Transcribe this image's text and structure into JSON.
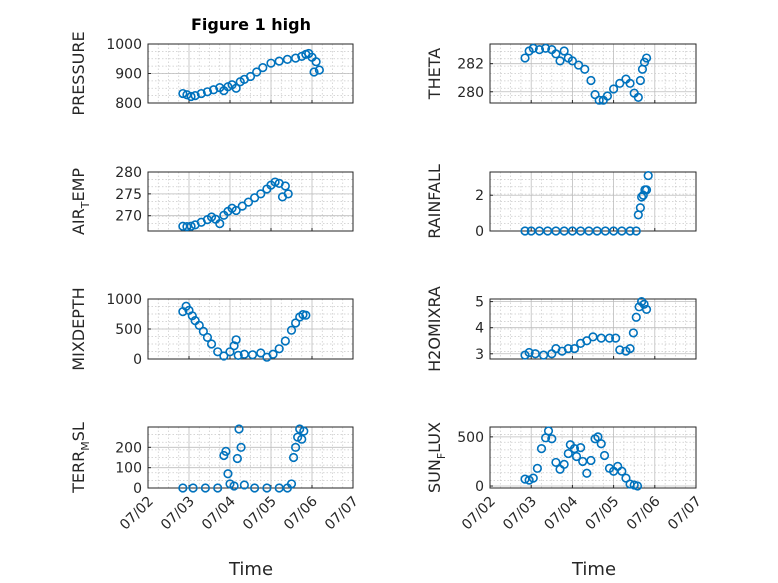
{
  "figure": {
    "title": "Figure 1 high",
    "marker_color": "#0072BD"
  },
  "chart_data": [
    {
      "type": "scatter",
      "id": "pressure",
      "ylabel": "PRESSURE",
      "ylim": [
        800,
        1000
      ],
      "yticks": [
        "800",
        "900",
        "1000"
      ],
      "x": [
        "07/02",
        "07/03",
        "07/04",
        "07/05",
        "07/06",
        "07/07"
      ],
      "series": [
        {
          "points": [
            [
              0.85,
              832
            ],
            [
              0.95,
              828
            ],
            [
              1.05,
              822
            ],
            [
              1.15,
              825
            ],
            [
              1.3,
              832
            ],
            [
              1.45,
              838
            ],
            [
              1.6,
              845
            ],
            [
              1.75,
              852
            ],
            [
              1.85,
              842
            ],
            [
              1.95,
              855
            ],
            [
              2.05,
              862
            ],
            [
              2.15,
              850
            ],
            [
              2.25,
              872
            ],
            [
              2.35,
              880
            ],
            [
              2.5,
              890
            ],
            [
              2.65,
              905
            ],
            [
              2.8,
              920
            ],
            [
              3.0,
              935
            ],
            [
              3.2,
              942
            ],
            [
              3.4,
              948
            ],
            [
              3.6,
              952
            ],
            [
              3.75,
              958
            ],
            [
              3.85,
              965
            ],
            [
              3.92,
              968
            ],
            [
              4.0,
              955
            ],
            [
              4.05,
              905
            ],
            [
              4.1,
              940
            ],
            [
              4.18,
              912
            ]
          ]
        }
      ]
    },
    {
      "type": "scatter",
      "id": "theta",
      "ylabel": "THETA",
      "ylim": [
        279.2,
        283.4
      ],
      "yticks": [
        "280",
        "282"
      ],
      "x": [
        "07/02",
        "07/03",
        "07/04",
        "07/05",
        "07/06",
        "07/07"
      ],
      "series": [
        {
          "points": [
            [
              0.85,
              282.4
            ],
            [
              0.95,
              282.9
            ],
            [
              1.05,
              283.1
            ],
            [
              1.2,
              283.0
            ],
            [
              1.35,
              283.1
            ],
            [
              1.5,
              283.0
            ],
            [
              1.6,
              282.7
            ],
            [
              1.7,
              282.2
            ],
            [
              1.8,
              282.9
            ],
            [
              1.9,
              282.4
            ],
            [
              2.0,
              282.2
            ],
            [
              2.15,
              281.9
            ],
            [
              2.3,
              281.6
            ],
            [
              2.45,
              280.8
            ],
            [
              2.55,
              279.8
            ],
            [
              2.65,
              279.4
            ],
            [
              2.75,
              279.4
            ],
            [
              2.85,
              279.7
            ],
            [
              3.0,
              280.2
            ],
            [
              3.15,
              280.6
            ],
            [
              3.3,
              280.9
            ],
            [
              3.4,
              280.6
            ],
            [
              3.5,
              279.9
            ],
            [
              3.6,
              279.6
            ],
            [
              3.65,
              280.8
            ],
            [
              3.7,
              281.6
            ],
            [
              3.75,
              282.1
            ],
            [
              3.8,
              282.4
            ]
          ]
        }
      ]
    },
    {
      "type": "scatter",
      "id": "air_temp",
      "ylabel": "AIR",
      "ylabel_sub": "T",
      "ylabel_tail": "EMP",
      "ylim": [
        266.5,
        280
      ],
      "yticks": [
        "270",
        "275",
        "280"
      ],
      "x": [
        "07/02",
        "07/03",
        "07/04",
        "07/05",
        "07/06",
        "07/07"
      ],
      "series": [
        {
          "points": [
            [
              0.85,
              267.6
            ],
            [
              0.95,
              267.5
            ],
            [
              1.05,
              267.6
            ],
            [
              1.15,
              267.9
            ],
            [
              1.3,
              268.5
            ],
            [
              1.45,
              269.1
            ],
            [
              1.55,
              269.7
            ],
            [
              1.65,
              269.2
            ],
            [
              1.75,
              268.2
            ],
            [
              1.85,
              270.1
            ],
            [
              1.95,
              271.0
            ],
            [
              2.05,
              271.7
            ],
            [
              2.15,
              271.2
            ],
            [
              2.3,
              272.2
            ],
            [
              2.45,
              273.1
            ],
            [
              2.6,
              274.1
            ],
            [
              2.75,
              275.0
            ],
            [
              2.9,
              276.1
            ],
            [
              3.0,
              277.0
            ],
            [
              3.1,
              277.7
            ],
            [
              3.2,
              277.4
            ],
            [
              3.28,
              274.3
            ],
            [
              3.35,
              276.8
            ],
            [
              3.42,
              275.0
            ]
          ]
        }
      ]
    },
    {
      "type": "scatter",
      "id": "rainfall",
      "ylabel": "RAINFALL",
      "ylim": [
        0,
        3.3
      ],
      "yticks": [
        "0",
        "2"
      ],
      "x": [
        "07/02",
        "07/03",
        "07/04",
        "07/05",
        "07/06",
        "07/07"
      ],
      "series": [
        {
          "points": [
            [
              0.85,
              0
            ],
            [
              1.0,
              0
            ],
            [
              1.2,
              0
            ],
            [
              1.4,
              0
            ],
            [
              1.6,
              0
            ],
            [
              1.8,
              0
            ],
            [
              2.0,
              0
            ],
            [
              2.2,
              0
            ],
            [
              2.4,
              0
            ],
            [
              2.6,
              0
            ],
            [
              2.8,
              0
            ],
            [
              3.0,
              0
            ],
            [
              3.2,
              0
            ],
            [
              3.4,
              0
            ],
            [
              3.55,
              0
            ],
            [
              3.6,
              0.9
            ],
            [
              3.65,
              1.3
            ],
            [
              3.68,
              1.9
            ],
            [
              3.72,
              2.0
            ],
            [
              3.76,
              2.3
            ],
            [
              3.8,
              2.3
            ],
            [
              3.84,
              3.1
            ]
          ]
        }
      ]
    },
    {
      "type": "scatter",
      "id": "mixdepth",
      "ylabel": "MIXDEPTH",
      "ylim": [
        0,
        1000
      ],
      "yticks": [
        "0",
        "500",
        "1000"
      ],
      "x": [
        "07/02",
        "07/03",
        "07/04",
        "07/05",
        "07/06",
        "07/07"
      ],
      "series": [
        {
          "points": [
            [
              0.85,
              790
            ],
            [
              0.93,
              880
            ],
            [
              1.0,
              810
            ],
            [
              1.08,
              720
            ],
            [
              1.15,
              640
            ],
            [
              1.25,
              560
            ],
            [
              1.35,
              460
            ],
            [
              1.45,
              360
            ],
            [
              1.55,
              250
            ],
            [
              1.7,
              120
            ],
            [
              1.85,
              50
            ],
            [
              2.0,
              120
            ],
            [
              2.1,
              220
            ],
            [
              2.15,
              320
            ],
            [
              2.2,
              60
            ],
            [
              2.35,
              80
            ],
            [
              2.55,
              70
            ],
            [
              2.75,
              100
            ],
            [
              2.9,
              30
            ],
            [
              3.05,
              80
            ],
            [
              3.2,
              170
            ],
            [
              3.35,
              300
            ],
            [
              3.5,
              480
            ],
            [
              3.6,
              600
            ],
            [
              3.7,
              700
            ],
            [
              3.78,
              740
            ],
            [
              3.85,
              730
            ]
          ]
        }
      ]
    },
    {
      "type": "scatter",
      "id": "h2omixra",
      "ylabel": "H2OMIXRA",
      "ylim": [
        2.8,
        5.1
      ],
      "yticks": [
        "3",
        "4",
        "5"
      ],
      "x": [
        "07/02",
        "07/03",
        "07/04",
        "07/05",
        "07/06",
        "07/07"
      ],
      "series": [
        {
          "points": [
            [
              0.85,
              2.95
            ],
            [
              0.95,
              3.05
            ],
            [
              1.1,
              3.0
            ],
            [
              1.3,
              2.95
            ],
            [
              1.5,
              3.0
            ],
            [
              1.6,
              3.2
            ],
            [
              1.75,
              3.1
            ],
            [
              1.9,
              3.2
            ],
            [
              2.05,
              3.2
            ],
            [
              2.2,
              3.4
            ],
            [
              2.35,
              3.5
            ],
            [
              2.5,
              3.65
            ],
            [
              2.7,
              3.6
            ],
            [
              2.9,
              3.6
            ],
            [
              3.05,
              3.6
            ],
            [
              3.15,
              3.15
            ],
            [
              3.3,
              3.1
            ],
            [
              3.4,
              3.2
            ],
            [
              3.48,
              3.8
            ],
            [
              3.55,
              4.4
            ],
            [
              3.62,
              4.8
            ],
            [
              3.68,
              5.0
            ],
            [
              3.74,
              4.9
            ],
            [
              3.8,
              4.7
            ]
          ]
        }
      ]
    },
    {
      "type": "scatter",
      "id": "terr_msl",
      "ylabel": "TERR",
      "ylabel_sub": "M",
      "ylabel_tail": "SL",
      "ylim": [
        0,
        300
      ],
      "yticks": [
        "0",
        "100",
        "200"
      ],
      "x": [
        "07/02",
        "07/03",
        "07/04",
        "07/05",
        "07/06",
        "07/07"
      ],
      "series": [
        {
          "points": [
            [
              0.85,
              0
            ],
            [
              1.1,
              0
            ],
            [
              1.4,
              0
            ],
            [
              1.7,
              0
            ],
            [
              1.85,
              160
            ],
            [
              1.9,
              180
            ],
            [
              1.95,
              70
            ],
            [
              2.0,
              20
            ],
            [
              2.1,
              10
            ],
            [
              2.18,
              145
            ],
            [
              2.22,
              290
            ],
            [
              2.27,
              200
            ],
            [
              2.35,
              15
            ],
            [
              2.6,
              0
            ],
            [
              2.9,
              0
            ],
            [
              3.2,
              0
            ],
            [
              3.4,
              0
            ],
            [
              3.5,
              20
            ],
            [
              3.55,
              150
            ],
            [
              3.6,
              200
            ],
            [
              3.65,
              250
            ],
            [
              3.7,
              290
            ],
            [
              3.75,
              240
            ],
            [
              3.8,
              280
            ]
          ]
        }
      ]
    },
    {
      "type": "scatter",
      "id": "sun_flux",
      "ylabel": "SUN",
      "ylabel_sub": "F",
      "ylabel_tail": "LUX",
      "ylim": [
        -20,
        600
      ],
      "yticks": [
        "0",
        "500"
      ],
      "x": [
        "07/02",
        "07/03",
        "07/04",
        "07/05",
        "07/06",
        "07/07"
      ],
      "series": [
        {
          "points": [
            [
              0.85,
              70
            ],
            [
              0.95,
              60
            ],
            [
              1.05,
              80
            ],
            [
              1.15,
              180
            ],
            [
              1.25,
              380
            ],
            [
              1.35,
              490
            ],
            [
              1.42,
              560
            ],
            [
              1.5,
              480
            ],
            [
              1.6,
              240
            ],
            [
              1.7,
              170
            ],
            [
              1.8,
              220
            ],
            [
              1.9,
              330
            ],
            [
              1.95,
              420
            ],
            [
              2.05,
              380
            ],
            [
              2.1,
              300
            ],
            [
              2.2,
              390
            ],
            [
              2.25,
              250
            ],
            [
              2.35,
              130
            ],
            [
              2.45,
              260
            ],
            [
              2.55,
              480
            ],
            [
              2.62,
              500
            ],
            [
              2.7,
              430
            ],
            [
              2.78,
              310
            ],
            [
              2.9,
              180
            ],
            [
              3.0,
              150
            ],
            [
              3.1,
              200
            ],
            [
              3.2,
              150
            ],
            [
              3.3,
              80
            ],
            [
              3.4,
              20
            ],
            [
              3.5,
              10
            ],
            [
              3.58,
              0
            ]
          ]
        }
      ]
    }
  ],
  "xaxis": {
    "label": "Time",
    "ticks": [
      "07/02",
      "07/03",
      "07/04",
      "07/05",
      "07/06",
      "07/07"
    ]
  }
}
